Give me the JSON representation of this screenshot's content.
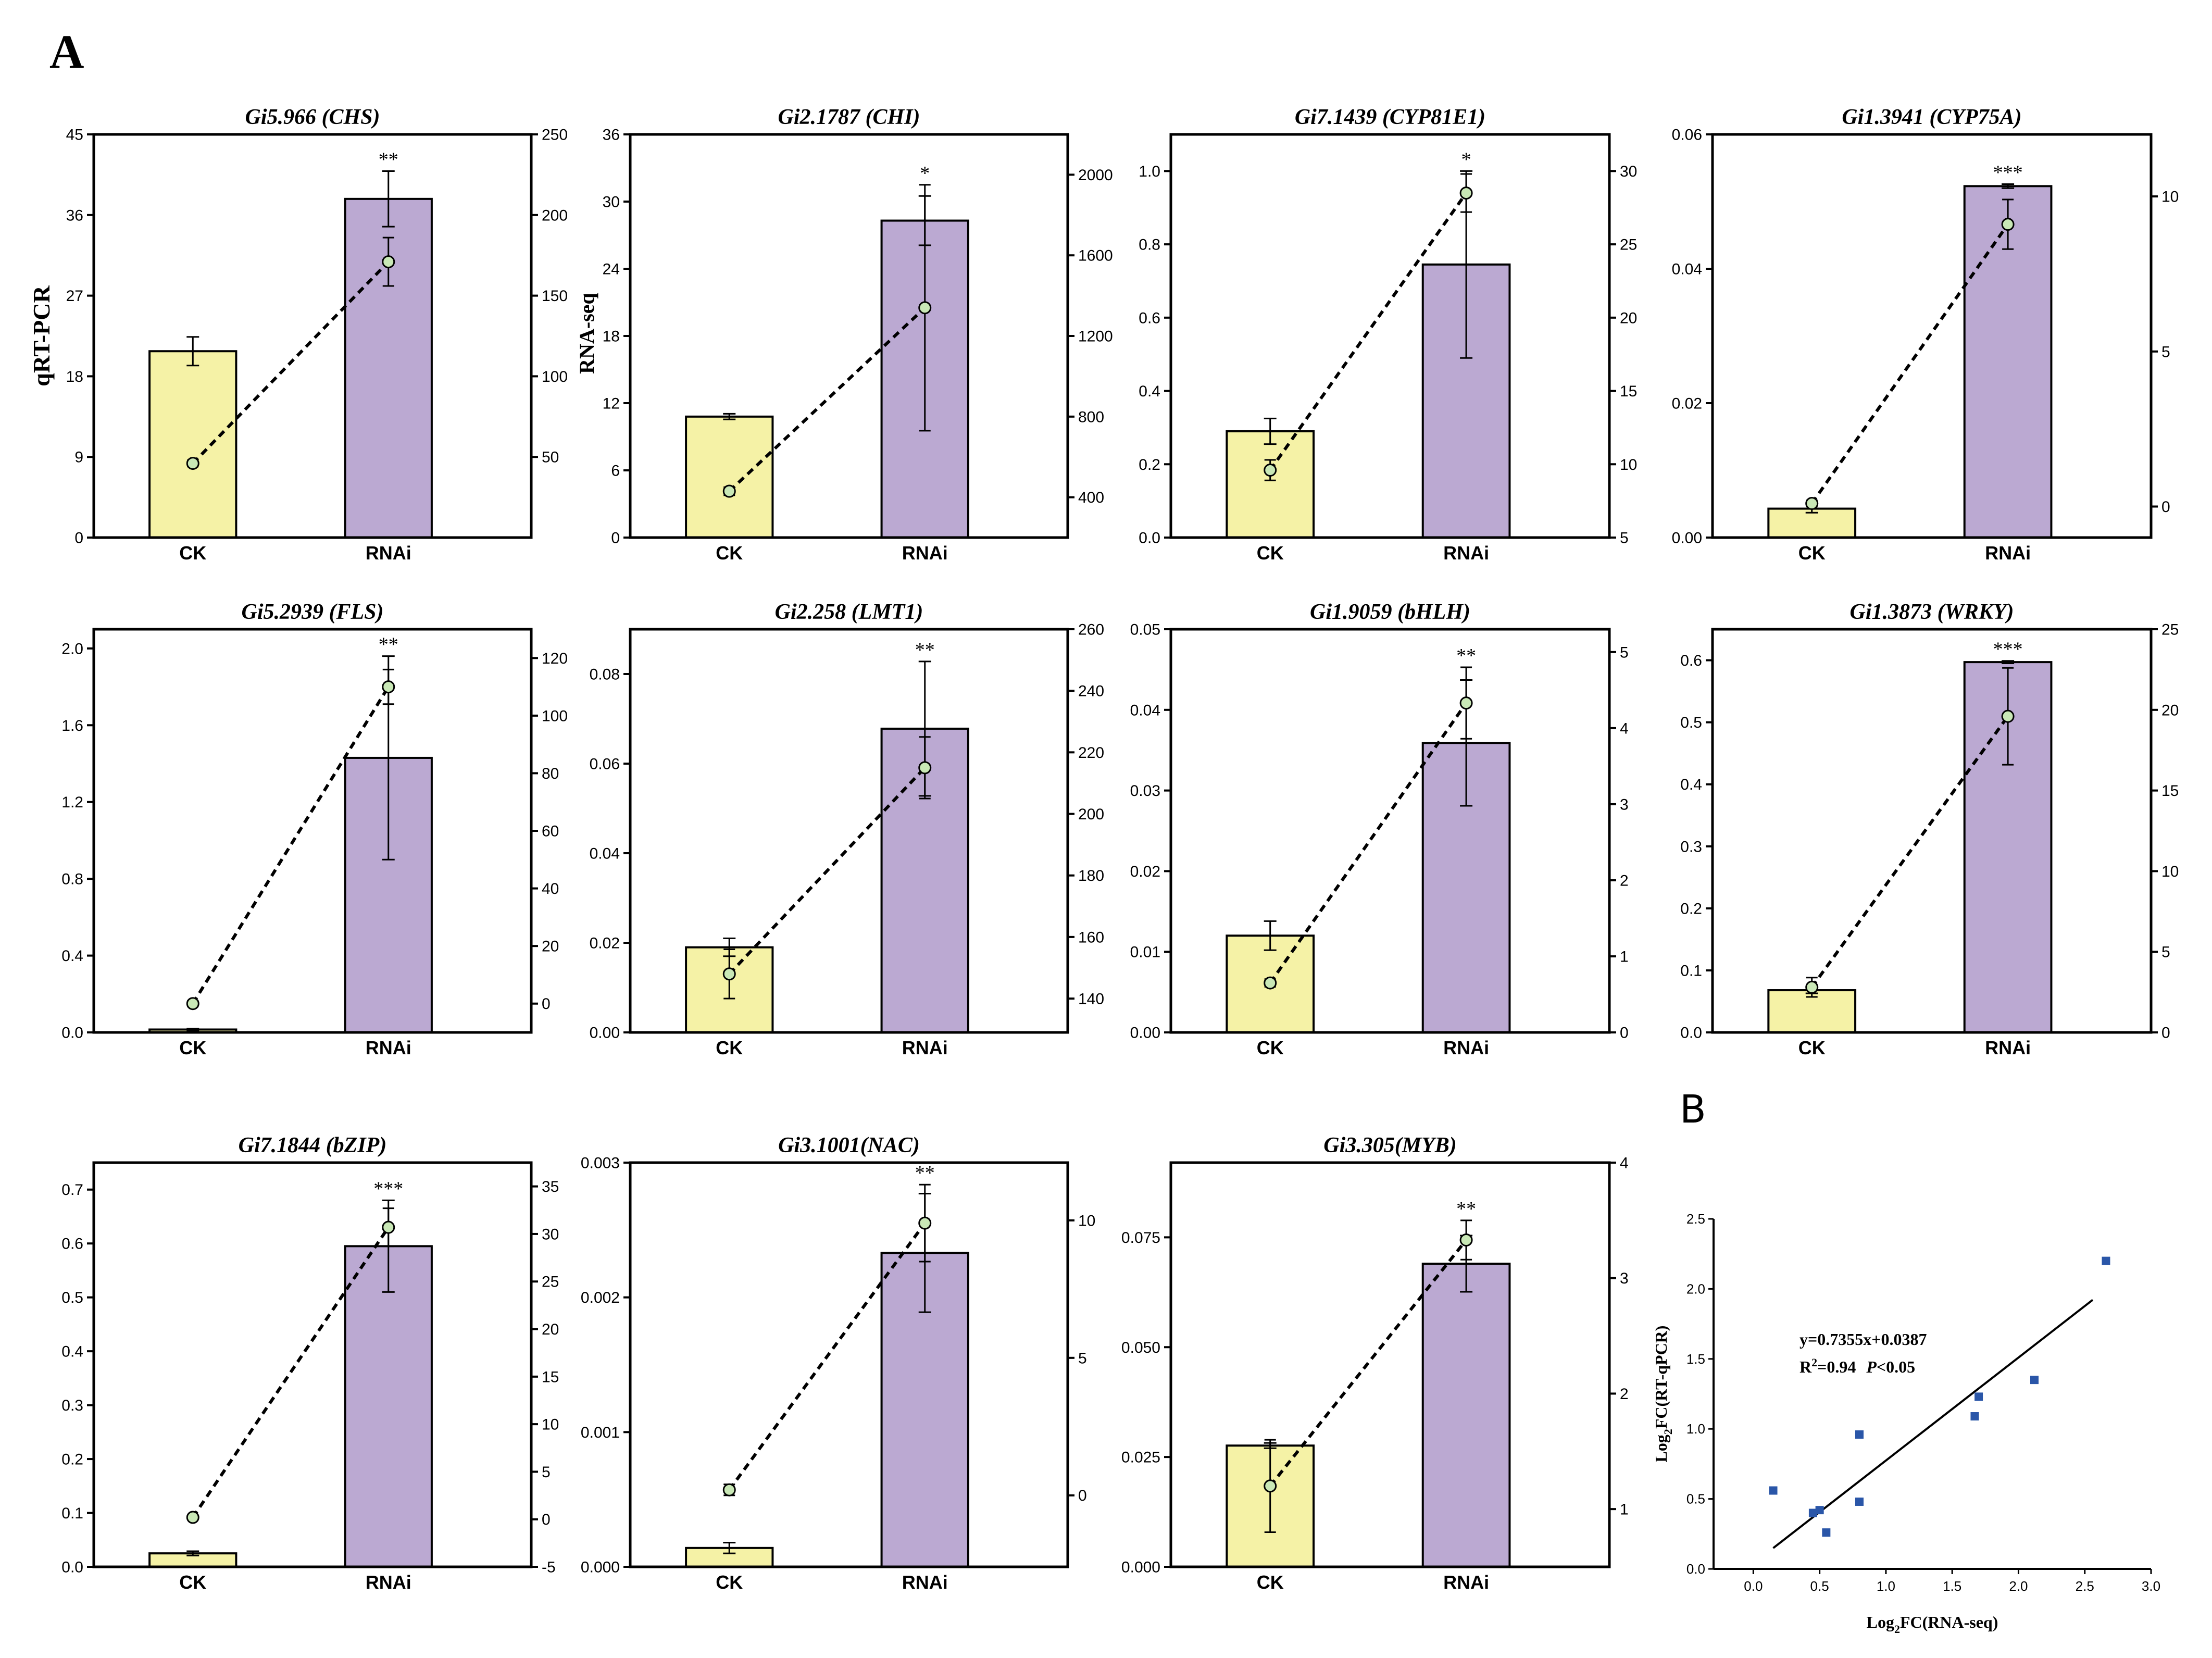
{
  "panel_labels": {
    "a": "A",
    "b": "B"
  },
  "colors": {
    "ck_bar": "#F5F2A6",
    "rnai_bar": "#BBA9D2",
    "marker": "#C9E8B6",
    "scatter": "#2A56A8",
    "line": "#000000"
  },
  "chart_data": [
    {
      "type": "bar",
      "title": "Gi5.966 (CHS)",
      "categories": [
        "CK",
        "RNAi"
      ],
      "ylabel": "qRT-PCR",
      "y2label": "",
      "ylim": [
        0,
        45
      ],
      "yticks": [
        0,
        9,
        18,
        27,
        36,
        45
      ],
      "ytick_labels": [
        "0",
        "9",
        "18",
        "27",
        "36",
        "45"
      ],
      "y2lim": [
        0,
        250
      ],
      "y2ticks": [
        50,
        100,
        150,
        200,
        250
      ],
      "y2tick_labels": [
        "50",
        "100",
        "150",
        "200",
        "250"
      ],
      "series": [
        {
          "name": "qRT-PCR",
          "values": [
            20.8,
            37.8
          ],
          "errors": [
            1.6,
            3.1
          ]
        },
        {
          "name": "RNA-seq",
          "values": [
            46,
            171
          ],
          "errors": [
            2,
            15
          ]
        }
      ],
      "significance": "**"
    },
    {
      "type": "bar",
      "title": "Gi2.1787 (CHI)",
      "categories": [
        "CK",
        "RNAi"
      ],
      "ylabel": "",
      "y2label": "RNA-seq",
      "ylim": [
        0,
        36
      ],
      "yticks": [
        0,
        6,
        12,
        18,
        24,
        30,
        36
      ],
      "ytick_labels": [
        "0",
        "6",
        "12",
        "18",
        "24",
        "30",
        "36"
      ],
      "y2lim": [
        200,
        2200
      ],
      "y2ticks": [
        400,
        800,
        1200,
        1600,
        2000
      ],
      "y2tick_labels": [
        "400",
        "800",
        "1200",
        "1600",
        "2000"
      ],
      "series": [
        {
          "name": "qRT-PCR",
          "values": [
            10.8,
            28.3
          ],
          "errors": [
            0.25,
            2.2
          ]
        },
        {
          "name": "RNA-seq",
          "values": [
            430,
            1340
          ],
          "errors": [
            20,
            610
          ]
        }
      ],
      "significance": "*"
    },
    {
      "type": "bar",
      "title": "Gi7.1439 (CYP81E1)",
      "categories": [
        "CK",
        "RNAi"
      ],
      "ylabel": "",
      "y2label": "",
      "ylim": [
        0,
        1.1
      ],
      "yticks": [
        0,
        0.2,
        0.4,
        0.6,
        0.8,
        1.0
      ],
      "ytick_labels": [
        "0.0",
        "0.2",
        "0.4",
        "0.6",
        "0.8",
        "1.0"
      ],
      "y2lim": [
        5,
        32.5
      ],
      "y2ticks": [
        5,
        10,
        15,
        20,
        25,
        30
      ],
      "y2tick_labels": [
        "5",
        "10",
        "15",
        "20",
        "25",
        "30"
      ],
      "series": [
        {
          "name": "qRT-PCR",
          "values": [
            0.29,
            0.745
          ],
          "errors": [
            0.035,
            0.255
          ]
        },
        {
          "name": "RNA-seq",
          "values": [
            9.6,
            28.5
          ],
          "errors": [
            0.7,
            1.3
          ]
        }
      ],
      "significance": "*"
    },
    {
      "type": "bar",
      "title": "Gi1.3941 (CYP75A)",
      "categories": [
        "CK",
        "RNAi"
      ],
      "ylabel": "",
      "y2label": "",
      "ylim": [
        0,
        0.06
      ],
      "yticks": [
        0,
        0.02,
        0.04,
        0.06
      ],
      "ytick_labels": [
        "0.00",
        "0.02",
        "0.04",
        "0.06"
      ],
      "y2lim": [
        -1,
        12
      ],
      "y2ticks": [
        0,
        5,
        10
      ],
      "y2tick_labels": [
        "0",
        "5",
        "10"
      ],
      "series": [
        {
          "name": "qRT-PCR",
          "values": [
            0.0043,
            0.0523
          ],
          "errors": [
            0.0006,
            0.0003
          ]
        },
        {
          "name": "RNA-seq",
          "values": [
            0.1,
            9.1
          ],
          "errors": [
            0.1,
            0.8
          ]
        }
      ],
      "significance": "***"
    },
    {
      "type": "bar",
      "title": "Gi5.2939 (FLS)",
      "categories": [
        "CK",
        "RNAi"
      ],
      "ylabel": "",
      "y2label": "",
      "ylim": [
        0,
        2.1
      ],
      "yticks": [
        0,
        0.4,
        0.8,
        1.2,
        1.6,
        2.0
      ],
      "ytick_labels": [
        "0.0",
        "0.4",
        "0.8",
        "1.2",
        "1.6",
        "2.0"
      ],
      "y2lim": [
        -10,
        130
      ],
      "y2ticks": [
        0,
        20,
        40,
        60,
        80,
        100,
        120
      ],
      "y2tick_labels": [
        "0",
        "20",
        "40",
        "60",
        "80",
        "100",
        "120"
      ],
      "series": [
        {
          "name": "qRT-PCR",
          "values": [
            0.015,
            1.43
          ],
          "errors": [
            0.005,
            0.53
          ]
        },
        {
          "name": "RNA-seq",
          "values": [
            0,
            110
          ],
          "errors": [
            1,
            6
          ]
        }
      ],
      "significance": "**"
    },
    {
      "type": "bar",
      "title": "Gi2.258 (LMT1)",
      "categories": [
        "CK",
        "RNAi"
      ],
      "ylabel": "",
      "y2label": "",
      "ylim": [
        0,
        0.09
      ],
      "yticks": [
        0,
        0.02,
        0.04,
        0.06,
        0.08
      ],
      "ytick_labels": [
        "0.00",
        "0.02",
        "0.04",
        "0.06",
        "0.08"
      ],
      "y2lim": [
        129,
        260
      ],
      "y2ticks": [
        140,
        160,
        180,
        200,
        220,
        240,
        260
      ],
      "y2tick_labels": [
        "140",
        "160",
        "180",
        "200",
        "220",
        "240",
        "260"
      ],
      "series": [
        {
          "name": "qRT-PCR",
          "values": [
            0.019,
            0.0678
          ],
          "errors": [
            0.002,
            0.015
          ]
        },
        {
          "name": "RNA-seq",
          "values": [
            148,
            215
          ],
          "errors": [
            8,
            10
          ]
        }
      ],
      "significance": "**"
    },
    {
      "type": "bar",
      "title": "Gi1.9059 (bHLH)",
      "categories": [
        "CK",
        "RNAi"
      ],
      "ylabel": "",
      "y2label": "",
      "ylim": [
        0,
        0.05
      ],
      "yticks": [
        0,
        0.01,
        0.02,
        0.03,
        0.04,
        0.05
      ],
      "ytick_labels": [
        "0.00",
        "0.01",
        "0.02",
        "0.03",
        "0.04",
        "0.05"
      ],
      "y2lim": [
        0,
        5.3
      ],
      "y2ticks": [
        0,
        1,
        2,
        3,
        4,
        5
      ],
      "y2tick_labels": [
        "0",
        "1",
        "2",
        "3",
        "4",
        "5"
      ],
      "series": [
        {
          "name": "qRT-PCR",
          "values": [
            0.012,
            0.0359
          ],
          "errors": [
            0.0018,
            0.0078
          ]
        },
        {
          "name": "RNA-seq",
          "values": [
            0.65,
            4.33
          ],
          "errors": [
            0.05,
            0.47
          ]
        }
      ],
      "significance": "**"
    },
    {
      "type": "bar",
      "title": "Gi1.3873 (WRKY)",
      "categories": [
        "CK",
        "RNAi"
      ],
      "ylabel": "",
      "y2label": "",
      "ylim": [
        0,
        0.65
      ],
      "yticks": [
        0,
        0.1,
        0.2,
        0.3,
        0.4,
        0.5,
        0.6
      ],
      "ytick_labels": [
        "0.0",
        "0.1",
        "0.2",
        "0.3",
        "0.4",
        "0.5",
        "0.6"
      ],
      "y2lim": [
        0,
        25
      ],
      "y2ticks": [
        0,
        5,
        10,
        15,
        20,
        25
      ],
      "y2tick_labels": [
        "0",
        "5",
        "10",
        "15",
        "20",
        "25"
      ],
      "series": [
        {
          "name": "qRT-PCR",
          "values": [
            0.068,
            0.597
          ],
          "errors": [
            0.005,
            0.002
          ]
        },
        {
          "name": "RNA-seq",
          "values": [
            2.8,
            19.6
          ],
          "errors": [
            0.6,
            3.0
          ]
        }
      ],
      "significance": "***"
    },
    {
      "type": "bar",
      "title": "Gi7.1844 (bZIP)",
      "categories": [
        "CK",
        "RNAi"
      ],
      "ylabel": "",
      "y2label": "",
      "ylim": [
        0,
        0.75
      ],
      "yticks": [
        0,
        0.1,
        0.2,
        0.3,
        0.4,
        0.5,
        0.6,
        0.7
      ],
      "ytick_labels": [
        "0.0",
        "0.1",
        "0.2",
        "0.3",
        "0.4",
        "0.5",
        "0.6",
        "0.7"
      ],
      "y2lim": [
        -5,
        37.5
      ],
      "y2ticks": [
        -5,
        0,
        5,
        10,
        15,
        20,
        25,
        30,
        35
      ],
      "y2tick_labels": [
        "-5",
        "0",
        "5",
        "10",
        "15",
        "20",
        "25",
        "30",
        "35"
      ],
      "series": [
        {
          "name": "qRT-PCR",
          "values": [
            0.025,
            0.595
          ],
          "errors": [
            0.004,
            0.085
          ]
        },
        {
          "name": "RNA-seq",
          "values": [
            0.2,
            30.7
          ],
          "errors": [
            0.2,
            2.0
          ]
        }
      ],
      "significance": "***"
    },
    {
      "type": "bar",
      "title": "Gi3.1001(NAC)",
      "categories": [
        "CK",
        "RNAi"
      ],
      "ylabel": "",
      "y2label": "",
      "ylim": [
        0,
        0.003
      ],
      "yticks": [
        0,
        0.001,
        0.002,
        0.003
      ],
      "ytick_labels": [
        "0.000",
        "0.001",
        "0.002",
        "0.003"
      ],
      "y2lim": [
        -2.6,
        12.1
      ],
      "y2ticks": [
        0,
        5,
        10
      ],
      "y2tick_labels": [
        "0",
        "5",
        "10"
      ],
      "series": [
        {
          "name": "qRT-PCR",
          "values": [
            0.00014,
            0.00233
          ],
          "errors": [
            4e-05,
            0.00044
          ]
        },
        {
          "name": "RNA-seq",
          "values": [
            0.2,
            9.9
          ],
          "errors": [
            0.2,
            1.4
          ]
        }
      ],
      "significance": "**"
    },
    {
      "type": "bar",
      "title": "Gi3.305(MYB)",
      "categories": [
        "CK",
        "RNAi"
      ],
      "ylabel": "",
      "y2label": "",
      "ylim": [
        0,
        0.092
      ],
      "yticks": [
        0,
        0.025,
        0.05,
        0.075
      ],
      "ytick_labels": [
        "0.000",
        "0.025",
        "0.050",
        "0.075"
      ],
      "y2lim": [
        0.5,
        4
      ],
      "y2ticks": [
        1,
        2,
        3,
        4
      ],
      "y2tick_labels": [
        "1",
        "2",
        "3",
        "4"
      ],
      "series": [
        {
          "name": "qRT-PCR",
          "values": [
            0.0276,
            0.069
          ],
          "errors": [
            0.0006,
            0.0064
          ]
        },
        {
          "name": "RNA-seq",
          "values": [
            1.2,
            3.33
          ],
          "errors": [
            0.4,
            0.17
          ]
        }
      ],
      "significance": "**"
    },
    {
      "type": "scatter",
      "title": "",
      "xlabel": "Log2FC(RNA-seq)",
      "ylabel": "Log2FC(RT-qPCR)",
      "xlabel_parts": [
        "Log",
        "2",
        "FC(RNA-seq)"
      ],
      "ylabel_parts": [
        "Log",
        "2",
        "FC(RT-qPCR)"
      ],
      "xlim": [
        -0.3,
        3.0
      ],
      "ylim": [
        0,
        2.5
      ],
      "xticks": [
        0,
        0.5,
        1.0,
        1.5,
        2.0,
        2.5,
        3.0
      ],
      "xtick_labels": [
        "0.0",
        "0.5",
        "1.0",
        "1.5",
        "2.0",
        "2.5",
        "3.0"
      ],
      "yticks": [
        0,
        0.5,
        1.0,
        1.5,
        2.0,
        2.5
      ],
      "ytick_labels": [
        "0.0",
        "0.5",
        "1.0",
        "1.5",
        "2.0",
        "2.5"
      ],
      "x": [
        0.15,
        0.45,
        0.5,
        0.55,
        0.8,
        0.8,
        1.67,
        1.7,
        2.12,
        2.66
      ],
      "y": [
        0.56,
        0.4,
        0.42,
        0.26,
        0.48,
        0.96,
        1.09,
        1.23,
        1.35,
        2.2
      ],
      "fit": {
        "slope": 0.7355,
        "intercept": 0.0387,
        "x_range": [
          0.15,
          2.56
        ]
      },
      "equation": "y=0.7355x+0.0387",
      "r2_prefix": "R",
      "r2_sup": "2",
      "r2_value": "=0.94",
      "p_label": "P",
      "p_value": "<0.05"
    }
  ]
}
